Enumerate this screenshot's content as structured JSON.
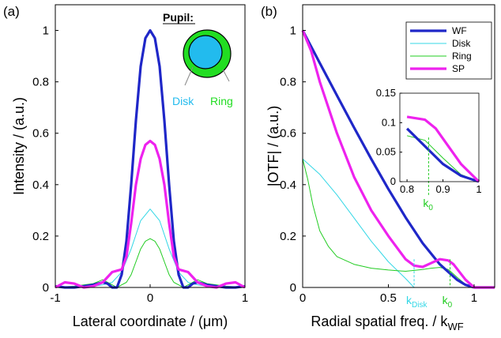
{
  "chart_data": [
    {
      "panel_label": "(a)",
      "type": "line",
      "xlabel": "Lateral coordinate / (μm)",
      "ylabel": "Intensity / (a.u.)",
      "xlim": [
        -1,
        1
      ],
      "ylim": [
        0,
        1.1
      ],
      "xticks": [
        "-1",
        "0",
        "1"
      ],
      "yticks": [
        "0",
        "0.2",
        "0.4",
        "0.6",
        "0.8",
        "1"
      ],
      "series": [
        {
          "key": "wf",
          "color": "#1f27c8",
          "x": [
            -1,
            -0.9,
            -0.8,
            -0.7,
            -0.6,
            -0.5,
            -0.45,
            -0.4,
            -0.35,
            -0.3,
            -0.25,
            -0.2,
            -0.15,
            -0.1,
            -0.05,
            0,
            0.05,
            0.1,
            0.15,
            0.2,
            0.25,
            0.3,
            0.35,
            0.4,
            0.45,
            0.5,
            0.6,
            0.7,
            0.8,
            0.9,
            1
          ],
          "y": [
            0.005,
            0.0,
            0.0,
            0.005,
            0.01,
            0.02,
            0.015,
            0.0,
            0.0,
            0.05,
            0.18,
            0.4,
            0.65,
            0.86,
            0.97,
            1.0,
            0.97,
            0.86,
            0.65,
            0.4,
            0.18,
            0.05,
            0.0,
            0.0,
            0.015,
            0.02,
            0.01,
            0.005,
            0.0,
            0.0,
            0.005
          ]
        },
        {
          "key": "disk",
          "color": "#33d7e6",
          "x": [
            -1,
            -0.8,
            -0.6,
            -0.5,
            -0.4,
            -0.3,
            -0.2,
            -0.1,
            0,
            0.1,
            0.2,
            0.3,
            0.4,
            0.5,
            0.6,
            0.8,
            1
          ],
          "y": [
            0.0,
            0.0,
            0.005,
            0.01,
            0.02,
            0.06,
            0.15,
            0.26,
            0.305,
            0.26,
            0.15,
            0.06,
            0.02,
            0.01,
            0.005,
            0.0,
            0.0
          ]
        },
        {
          "key": "ring",
          "color": "#22cc22",
          "x": [
            -1,
            -0.8,
            -0.6,
            -0.5,
            -0.4,
            -0.35,
            -0.3,
            -0.25,
            -0.2,
            -0.15,
            -0.1,
            -0.05,
            0,
            0.05,
            0.1,
            0.15,
            0.2,
            0.25,
            0.3,
            0.35,
            0.4,
            0.5,
            0.6,
            0.8,
            1
          ],
          "y": [
            0.0,
            0.005,
            0.015,
            0.03,
            0.01,
            0.0,
            0.01,
            0.02,
            0.05,
            0.1,
            0.15,
            0.18,
            0.19,
            0.18,
            0.15,
            0.1,
            0.05,
            0.02,
            0.01,
            0.0,
            0.01,
            0.03,
            0.015,
            0.005,
            0.0
          ]
        },
        {
          "key": "sp",
          "color": "#ee22ee",
          "x": [
            -1,
            -0.9,
            -0.8,
            -0.7,
            -0.6,
            -0.5,
            -0.45,
            -0.4,
            -0.35,
            -0.3,
            -0.25,
            -0.2,
            -0.15,
            -0.1,
            -0.05,
            0,
            0.05,
            0.1,
            0.15,
            0.2,
            0.25,
            0.3,
            0.35,
            0.4,
            0.45,
            0.5,
            0.6,
            0.7,
            0.8,
            0.9,
            1
          ],
          "y": [
            0.0,
            0.02,
            0.015,
            0.0,
            0.005,
            0.02,
            0.04,
            0.06,
            0.065,
            0.07,
            0.12,
            0.25,
            0.4,
            0.5,
            0.555,
            0.57,
            0.555,
            0.5,
            0.4,
            0.25,
            0.12,
            0.07,
            0.065,
            0.06,
            0.04,
            0.02,
            0.005,
            0.0,
            0.015,
            0.02,
            0.0
          ]
        }
      ],
      "inset_pupil": {
        "title": "Pupil:",
        "disk_label": "Disk",
        "ring_label": "Ring",
        "disk_color": "#22bbee",
        "ring_color": "#22dd22"
      }
    },
    {
      "panel_label": "(b)",
      "type": "line",
      "xlabel": "Radial spatial freq. / k",
      "xlabel_sub": "WF",
      "ylabel": "|OTF| / (a.u.)",
      "xlim": [
        0,
        1.12
      ],
      "ylim": [
        0,
        1.1
      ],
      "xticks": [
        "0",
        "0.5",
        "1"
      ],
      "yticks": [
        "0",
        "0.2",
        "0.4",
        "0.6",
        "0.8",
        "1"
      ],
      "legend": {
        "position": "top-right",
        "entries": [
          {
            "key": "wf",
            "label": "WF"
          },
          {
            "key": "disk",
            "label": "Disk"
          },
          {
            "key": "ring",
            "label": "Ring"
          },
          {
            "key": "sp",
            "label": "SP"
          }
        ]
      },
      "series": [
        {
          "key": "wf",
          "color": "#1f27c8",
          "x": [
            0,
            0.1,
            0.2,
            0.3,
            0.4,
            0.5,
            0.6,
            0.7,
            0.8,
            0.9,
            0.95,
            1.0,
            1.12
          ],
          "y": [
            1.0,
            0.873,
            0.747,
            0.622,
            0.5,
            0.383,
            0.273,
            0.172,
            0.09,
            0.03,
            0.01,
            0.0,
            0.0
          ]
        },
        {
          "key": "disk",
          "color": "#33d7e6",
          "x": [
            0,
            0.1,
            0.2,
            0.3,
            0.4,
            0.5,
            0.6,
            0.65
          ],
          "y": [
            0.5,
            0.44,
            0.36,
            0.27,
            0.18,
            0.1,
            0.035,
            0.0
          ]
        },
        {
          "key": "ring",
          "color": "#22cc22",
          "x": [
            0,
            0.03,
            0.06,
            0.1,
            0.15,
            0.2,
            0.3,
            0.4,
            0.5,
            0.6,
            0.7,
            0.75,
            0.8,
            0.85,
            0.9,
            0.95,
            1.0,
            1.12
          ],
          "y": [
            0.5,
            0.42,
            0.32,
            0.22,
            0.16,
            0.12,
            0.09,
            0.075,
            0.068,
            0.063,
            0.07,
            0.075,
            0.078,
            0.07,
            0.04,
            0.012,
            0.0,
            0.0
          ]
        },
        {
          "key": "sp",
          "color": "#ee22ee",
          "x": [
            0,
            0.05,
            0.1,
            0.2,
            0.3,
            0.4,
            0.5,
            0.6,
            0.65,
            0.7,
            0.75,
            0.8,
            0.85,
            0.88,
            0.95,
            1.0,
            1.12
          ],
          "y": [
            1.0,
            0.92,
            0.8,
            0.6,
            0.43,
            0.3,
            0.2,
            0.11,
            0.085,
            0.08,
            0.095,
            0.11,
            0.105,
            0.09,
            0.03,
            0.0,
            0.0
          ]
        }
      ],
      "annotations": {
        "k_disk": {
          "x": 0.65,
          "label": "k",
          "sub": "Disk",
          "color": "#33d7e6"
        },
        "k_0": {
          "x": 0.86,
          "label": "k",
          "sub": "0",
          "color": "#22cc22"
        }
      },
      "inset": {
        "xlim": [
          0.78,
          1.0
        ],
        "ylim": [
          0,
          0.15
        ],
        "xticks": [
          "0.8",
          "0.9",
          "1"
        ],
        "yticks": [
          "0",
          "0.05",
          "0.1",
          "0.15"
        ],
        "k0_x": 0.86,
        "k0_label": "k",
        "k0_sub": "0"
      }
    }
  ]
}
